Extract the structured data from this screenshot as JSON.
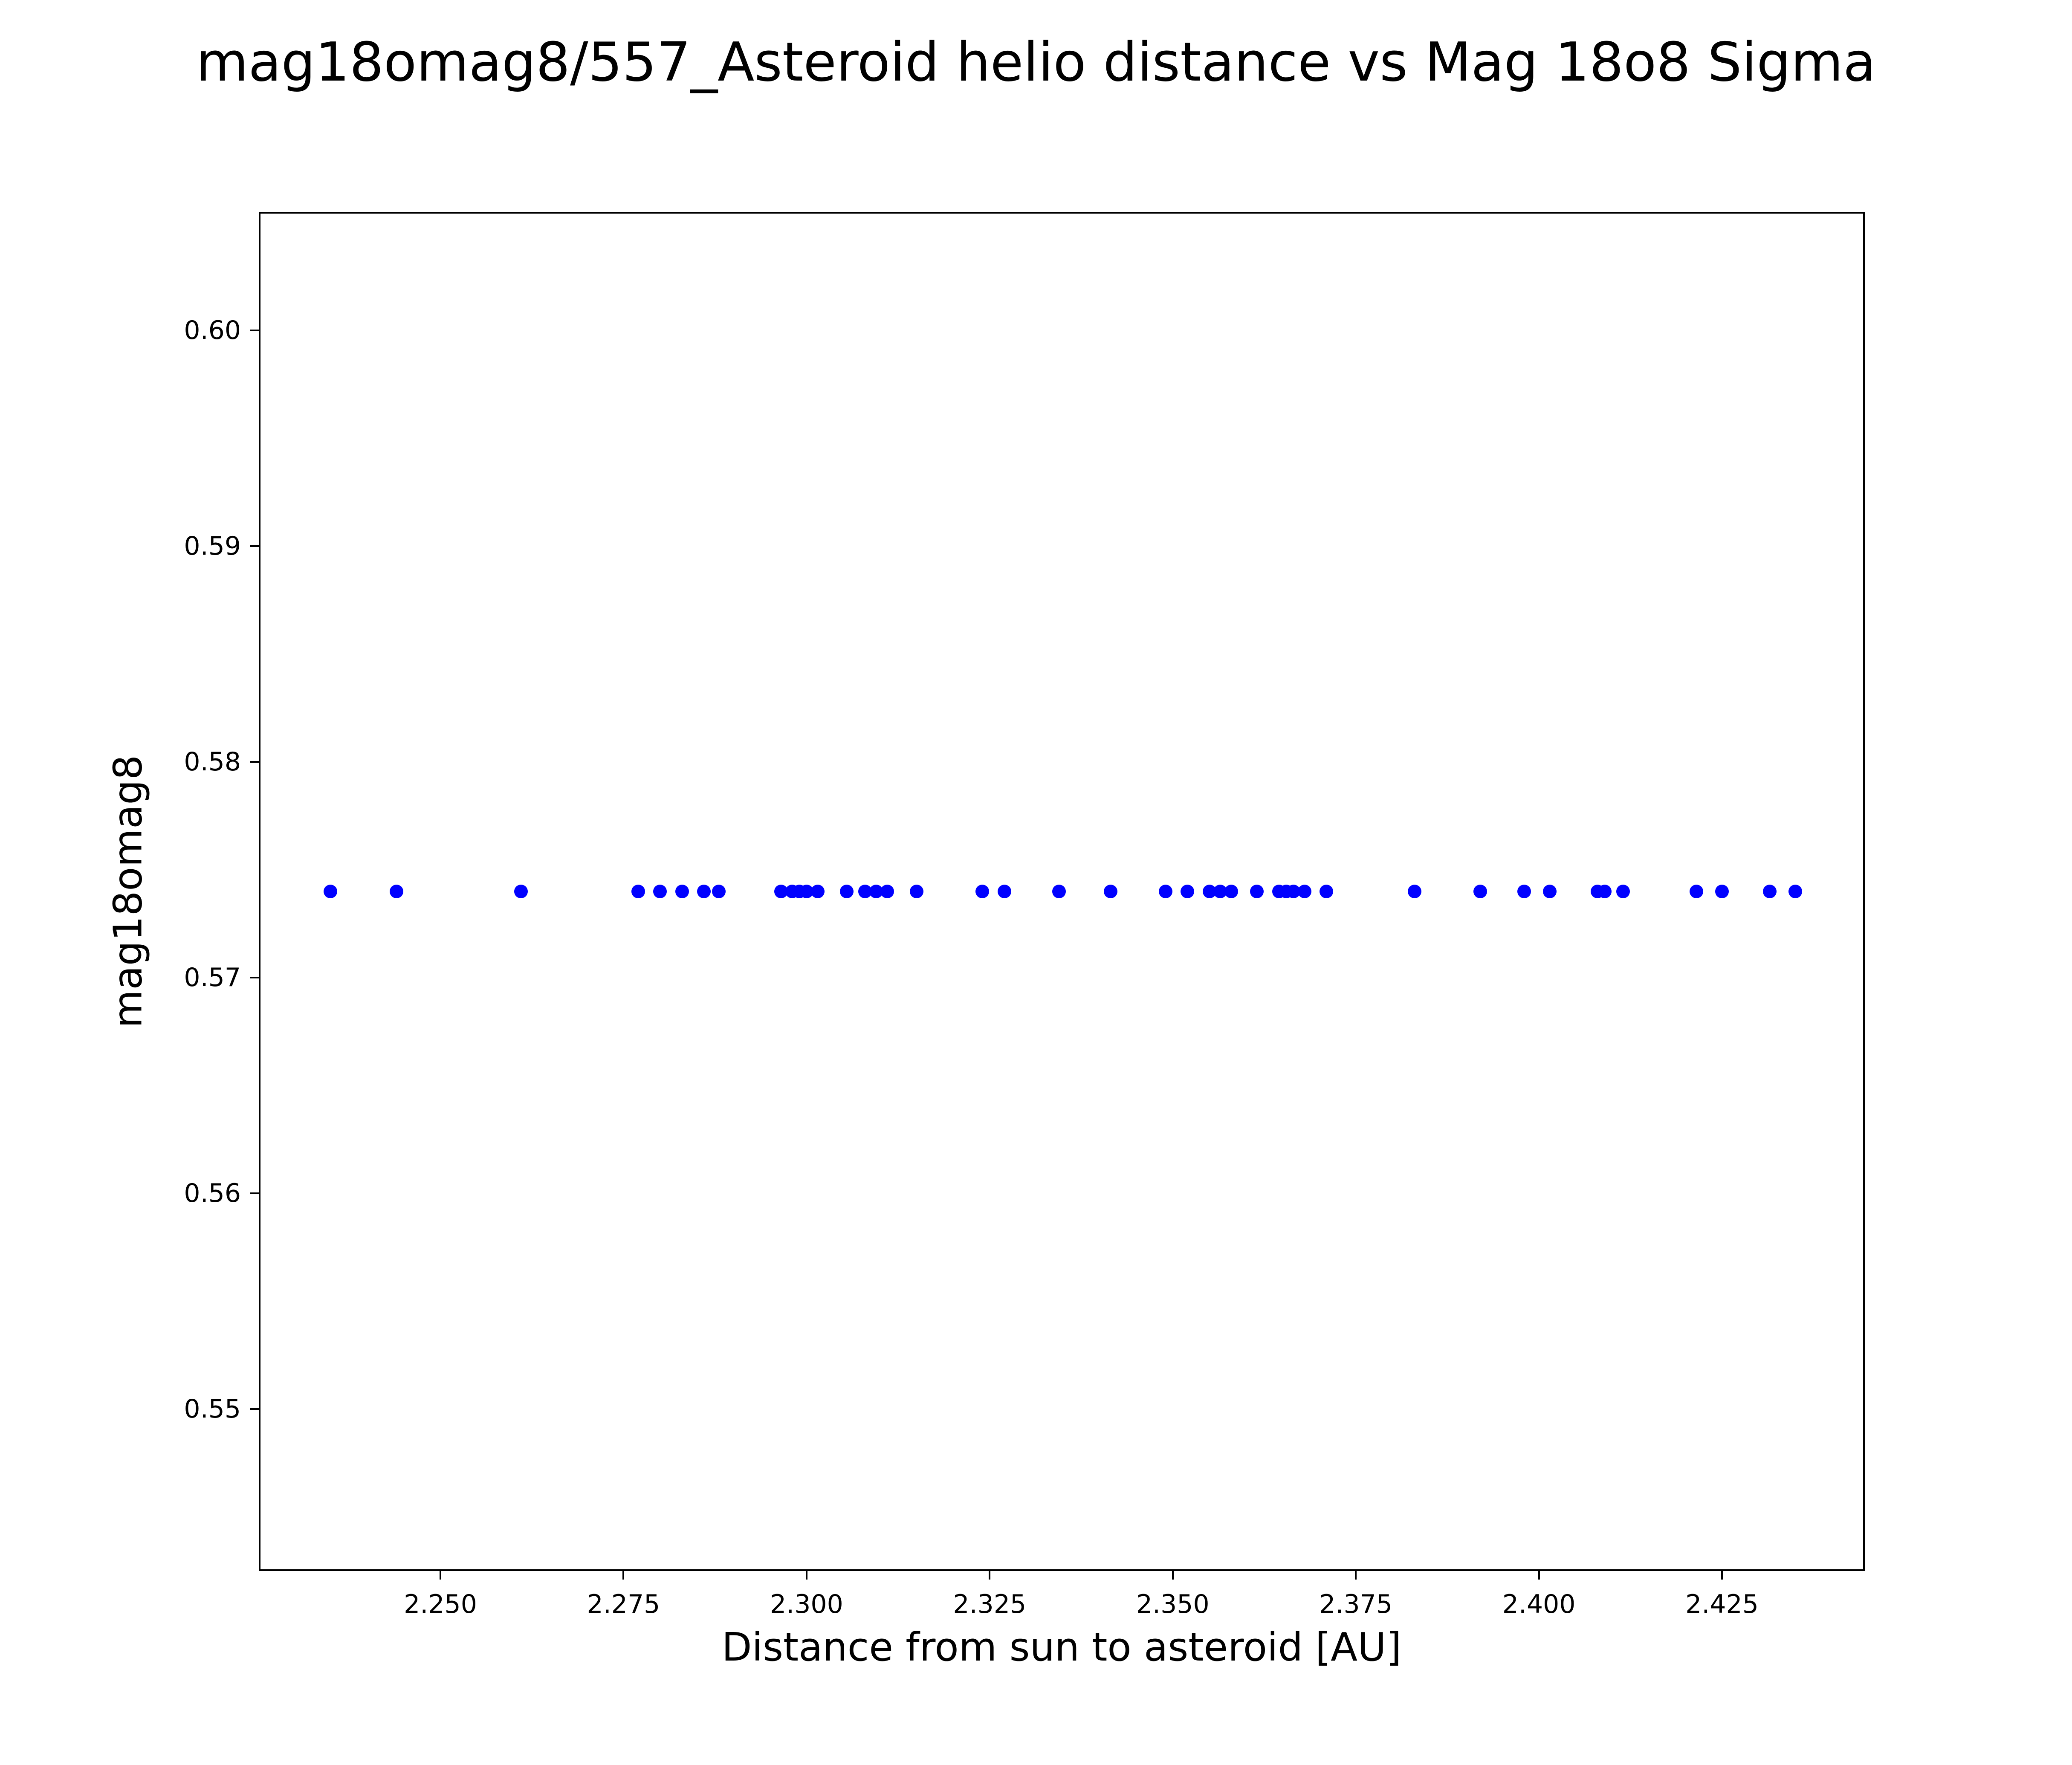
{
  "figure": {
    "background": "#ffffff"
  },
  "chart_data": {
    "type": "scatter",
    "title": "mag18omag8/557_Asteroid helio distance vs Mag 18o8 Sigma",
    "xlabel": "Distance from sun to asteroid [AU]",
    "ylabel": "mag18omag8",
    "marker_color": "#0000ff",
    "axis_color": "#000000",
    "grid": false,
    "legend_position": "none",
    "xlim": [
      2.2252,
      2.4445
    ],
    "ylim": [
      0.5425,
      0.6055
    ],
    "xticks": [
      2.25,
      2.275,
      2.3,
      2.325,
      2.35,
      2.375,
      2.4,
      2.425
    ],
    "xtick_labels": [
      "2.250",
      "2.275",
      "2.300",
      "2.325",
      "2.350",
      "2.375",
      "2.400",
      "2.425"
    ],
    "yticks": [
      0.55,
      0.56,
      0.57,
      0.58,
      0.59,
      0.6
    ],
    "ytick_labels": [
      "0.55",
      "0.56",
      "0.57",
      "0.58",
      "0.59",
      "0.60"
    ],
    "y_constant": 0.574,
    "x": [
      2.235,
      2.244,
      2.261,
      2.277,
      2.28,
      2.283,
      2.286,
      2.288,
      2.2965,
      2.298,
      2.299,
      2.3,
      2.3015,
      2.3055,
      2.308,
      2.3095,
      2.311,
      2.315,
      2.324,
      2.327,
      2.3345,
      2.3415,
      2.349,
      2.352,
      2.355,
      2.3565,
      2.358,
      2.3615,
      2.3645,
      2.3655,
      2.3665,
      2.368,
      2.371,
      2.383,
      2.392,
      2.398,
      2.4015,
      2.408,
      2.409,
      2.4115,
      2.4215,
      2.425,
      2.4315,
      2.435
    ],
    "y": [
      0.574,
      0.574,
      0.574,
      0.574,
      0.574,
      0.574,
      0.574,
      0.574,
      0.574,
      0.574,
      0.574,
      0.574,
      0.574,
      0.574,
      0.574,
      0.574,
      0.574,
      0.574,
      0.574,
      0.574,
      0.574,
      0.574,
      0.574,
      0.574,
      0.574,
      0.574,
      0.574,
      0.574,
      0.574,
      0.574,
      0.574,
      0.574,
      0.574,
      0.574,
      0.574,
      0.574,
      0.574,
      0.574,
      0.574,
      0.574,
      0.574,
      0.574,
      0.574,
      0.574
    ]
  }
}
